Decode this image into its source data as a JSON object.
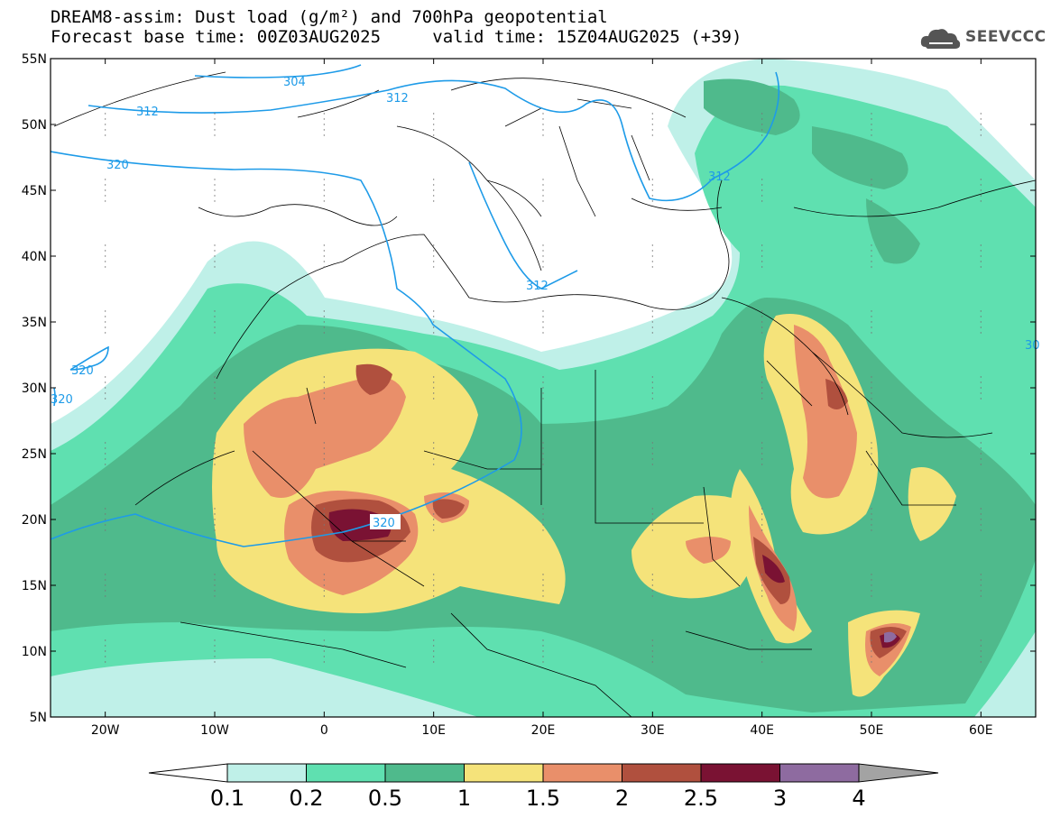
{
  "header": {
    "line1": "DREAM8-assim: Dust load (g/m²) and 700hPa geopotential",
    "line2_left": "Forecast base time: 00Z03AUG2025",
    "line2_right": "valid time: 15Z04AUG2025 (+39)"
  },
  "logo": {
    "text": "SEEVCCC",
    "icon": "cloud-logo-icon"
  },
  "axes": {
    "lat_labels": [
      "55N",
      "50N",
      "45N",
      "40N",
      "35N",
      "30N",
      "25N",
      "20N",
      "15N",
      "10N",
      "5N"
    ],
    "lon_labels": [
      "20W",
      "10W",
      "0",
      "10E",
      "20E",
      "30E",
      "40E",
      "50E",
      "60E"
    ]
  },
  "contour_labels": [
    "304",
    "312",
    "312",
    "320",
    "312",
    "320",
    "30",
    "312",
    "320"
  ],
  "colorbar": {
    "labels": [
      "0.1",
      "0.2",
      "0.5",
      "1",
      "1.5",
      "2",
      "2.5",
      "3",
      "4"
    ],
    "colors": [
      "#bff0e8",
      "#5fe0b0",
      "#4fba8c",
      "#f5e37a",
      "#e98f6a",
      "#b0503e",
      "#7a1233",
      "#8e6ba0",
      "#a3a3a3"
    ]
  },
  "colors": {
    "geopotential_line": "#1e9be8",
    "land_border": "#000000",
    "background": "#ffffff"
  }
}
